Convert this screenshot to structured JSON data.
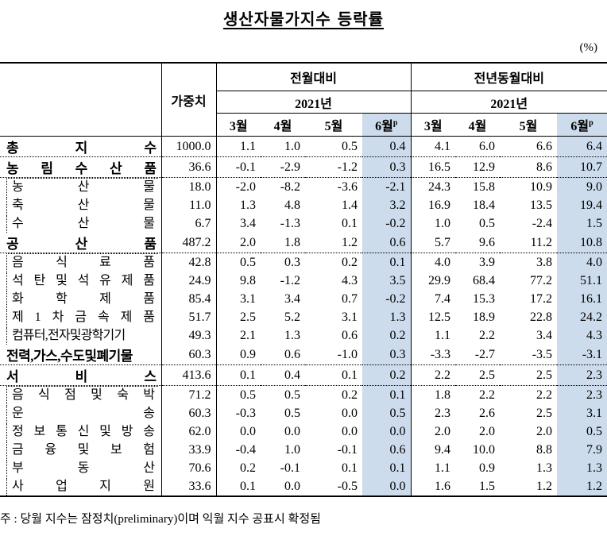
{
  "title": "생산자물가지수 등락률",
  "unit": "(%)",
  "header": {
    "weight": "가중치",
    "group_mom": "전월대비",
    "group_yoy": "전년동월대비",
    "year": "2021년",
    "months": [
      "3월",
      "4월",
      "5월",
      "6월"
    ],
    "prelim_mark": "p"
  },
  "highlight_color": "#cddcec",
  "rows": [
    {
      "label": "총지수",
      "level": "top",
      "weight": "1000.0",
      "mom": [
        "1.1",
        "1.0",
        "0.5",
        "0.4"
      ],
      "yoy": [
        "4.1",
        "6.0",
        "6.6",
        "6.4"
      ]
    },
    {
      "label": "농림수산품",
      "level": "top",
      "weight": "36.6",
      "mom": [
        "-0.1",
        "-2.9",
        "-1.2",
        "0.3"
      ],
      "yoy": [
        "16.5",
        "12.9",
        "8.6",
        "10.7"
      ]
    },
    {
      "label": "농산물",
      "level": "sub",
      "weight": "18.0",
      "mom": [
        "-2.0",
        "-8.2",
        "-3.6",
        "-2.1"
      ],
      "yoy": [
        "24.3",
        "15.8",
        "10.9",
        "9.0"
      ]
    },
    {
      "label": "축산물",
      "level": "sub",
      "weight": "11.0",
      "mom": [
        "1.3",
        "4.8",
        "1.4",
        "3.2"
      ],
      "yoy": [
        "16.9",
        "18.4",
        "13.5",
        "19.4"
      ]
    },
    {
      "label": "수산물",
      "level": "sub",
      "weight": "6.7",
      "mom": [
        "3.4",
        "-1.3",
        "0.1",
        "-0.2"
      ],
      "yoy": [
        "1.0",
        "0.5",
        "-2.4",
        "1.5"
      ]
    },
    {
      "label": "공산품",
      "level": "top",
      "weight": "487.2",
      "mom": [
        "2.0",
        "1.8",
        "1.2",
        "0.6"
      ],
      "yoy": [
        "5.7",
        "9.6",
        "11.2",
        "10.8"
      ]
    },
    {
      "label": "음식료품",
      "level": "sub",
      "weight": "42.8",
      "mom": [
        "0.5",
        "0.3",
        "0.2",
        "0.1"
      ],
      "yoy": [
        "4.0",
        "3.9",
        "3.8",
        "4.0"
      ]
    },
    {
      "label": "석탄및석유제품",
      "level": "sub",
      "weight": "24.9",
      "mom": [
        "9.8",
        "-1.2",
        "4.3",
        "3.5"
      ],
      "yoy": [
        "29.9",
        "68.4",
        "77.2",
        "51.1"
      ]
    },
    {
      "label": "화학제품",
      "level": "sub",
      "weight": "85.4",
      "mom": [
        "3.1",
        "3.4",
        "0.7",
        "-0.2"
      ],
      "yoy": [
        "7.4",
        "15.3",
        "17.2",
        "16.1"
      ]
    },
    {
      "label": "제1차금속제품",
      "level": "sub",
      "weight": "51.7",
      "mom": [
        "2.5",
        "5.2",
        "3.1",
        "1.3"
      ],
      "yoy": [
        "12.5",
        "18.9",
        "22.8",
        "24.2"
      ]
    },
    {
      "label": "컴퓨터,전자및광학기기",
      "level": "sub",
      "plain": true,
      "weight": "49.3",
      "mom": [
        "2.1",
        "1.3",
        "0.6",
        "0.2"
      ],
      "yoy": [
        "1.1",
        "2.2",
        "3.4",
        "4.3"
      ]
    },
    {
      "label": "전력,가스,수도및폐기물",
      "level": "top",
      "plain": true,
      "weight": "60.3",
      "mom": [
        "0.9",
        "0.6",
        "-1.0",
        "0.3"
      ],
      "yoy": [
        "-3.3",
        "-2.7",
        "-3.5",
        "-3.1"
      ]
    },
    {
      "label": "서비스",
      "level": "top",
      "weight": "413.6",
      "mom": [
        "0.1",
        "0.4",
        "0.1",
        "0.2"
      ],
      "yoy": [
        "2.2",
        "2.5",
        "2.5",
        "2.3"
      ]
    },
    {
      "label": "음식점및숙박",
      "level": "sub",
      "weight": "71.2",
      "mom": [
        "0.5",
        "0.5",
        "0.2",
        "0.1"
      ],
      "yoy": [
        "1.8",
        "2.2",
        "2.2",
        "2.3"
      ]
    },
    {
      "label": "운송",
      "level": "sub",
      "weight": "60.3",
      "mom": [
        "-0.3",
        "0.5",
        "0.0",
        "0.5"
      ],
      "yoy": [
        "2.3",
        "2.6",
        "2.5",
        "3.1"
      ]
    },
    {
      "label": "정보통신및방송",
      "level": "sub",
      "weight": "62.0",
      "mom": [
        "0.0",
        "0.0",
        "0.0",
        "0.0"
      ],
      "yoy": [
        "2.0",
        "2.0",
        "2.0",
        "0.5"
      ]
    },
    {
      "label": "금융및보험",
      "level": "sub",
      "weight": "33.9",
      "mom": [
        "-0.4",
        "1.0",
        "-0.1",
        "0.6"
      ],
      "yoy": [
        "9.4",
        "10.0",
        "8.8",
        "7.9"
      ]
    },
    {
      "label": "부동산",
      "level": "sub",
      "weight": "70.6",
      "mom": [
        "0.2",
        "-0.1",
        "0.1",
        "0.1"
      ],
      "yoy": [
        "1.1",
        "0.9",
        "1.3",
        "1.3"
      ]
    },
    {
      "label": "사업지원",
      "level": "sub",
      "weight": "33.6",
      "mom": [
        "0.1",
        "0.0",
        "-0.5",
        "0.0"
      ],
      "yoy": [
        "1.6",
        "1.5",
        "1.2",
        "1.2"
      ]
    }
  ],
  "note": "주 : 당월 지수는 잠정치(preliminary)이며 익월 지수 공표시 확정됨"
}
